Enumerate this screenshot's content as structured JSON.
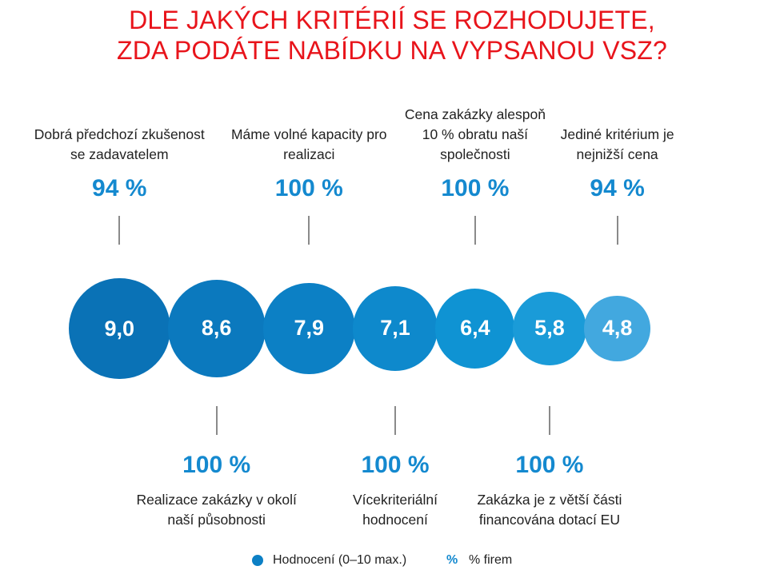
{
  "title": {
    "line1": "DLE JAKÝCH KRITÉRIÍ SE ROZHODUJETE,",
    "line2": "ZDA PODÁTE NABÍDKU NA VYPSANOU VSZ?"
  },
  "colors": {
    "title": "#e8141b",
    "percent": "#1489cf",
    "bubble_shades": [
      "#0a72b6",
      "#0b79be",
      "#0c80c5",
      "#0e89cc",
      "#0f93d3",
      "#1a9bd8",
      "#42a8df"
    ]
  },
  "chart_data": {
    "type": "bubble",
    "series": [
      {
        "name": "Hodnocení (0–10 max.)",
        "values": [
          9.0,
          8.6,
          7.9,
          7.1,
          6.4,
          5.8,
          4.8
        ]
      },
      {
        "name": "% firem",
        "values": [
          94,
          100,
          100,
          100,
          100,
          100,
          94
        ]
      }
    ],
    "items": [
      {
        "criterion": "Dobrá předchozí zkušenost se zadavatelem",
        "label_lines": [
          "Dobrá předchozí zkušenost",
          "se zadavatelem"
        ],
        "score": 9.0,
        "score_text": "9,0",
        "percent": 94,
        "percent_text": "94 %",
        "label_side": "top"
      },
      {
        "criterion": "Realizace zakázky v okolí naší působnosti",
        "label_lines": [
          "Realizace zakázky v okolí",
          "naší působnosti"
        ],
        "score": 8.6,
        "score_text": "8,6",
        "percent": 100,
        "percent_text": "100 %",
        "label_side": "bottom"
      },
      {
        "criterion": "Máme volné kapacity pro realizaci",
        "label_lines": [
          "Máme volné kapacity pro",
          "realizaci"
        ],
        "score": 7.9,
        "score_text": "7,9",
        "percent": 100,
        "percent_text": "100 %",
        "label_side": "top"
      },
      {
        "criterion": "Vícekriteriální hodnocení",
        "label_lines": [
          "Vícekriteriální",
          "hodnocení"
        ],
        "score": 7.1,
        "score_text": "7,1",
        "percent": 100,
        "percent_text": "100 %",
        "label_side": "bottom"
      },
      {
        "criterion": "Cena zakázky alespoň 10 % obratu naší společnosti",
        "label_lines": [
          "Cena zakázky alespoň",
          "10 % obratu naší",
          "společnosti"
        ],
        "score": 6.4,
        "score_text": "6,4",
        "percent": 100,
        "percent_text": "100 %",
        "label_side": "top"
      },
      {
        "criterion": "Zakázka je z větší části financována dotací EU",
        "label_lines": [
          "Zakázka je z větší části",
          "financována dotací EU"
        ],
        "score": 5.8,
        "score_text": "5,8",
        "percent": 100,
        "percent_text": "100 %",
        "label_side": "bottom"
      },
      {
        "criterion": "Jediné kritérium je nejnižší cena",
        "label_lines": [
          "Jediné kritérium je",
          "nejnižší cena"
        ],
        "score": 4.8,
        "score_text": "4,8",
        "percent": 94,
        "percent_text": "94 %",
        "label_side": "top"
      }
    ],
    "legend": {
      "score_label": "Hodnocení (0–10 max.)",
      "percent_symbol": "%",
      "percent_label": "% firem",
      "placement": "bottom-center"
    }
  }
}
